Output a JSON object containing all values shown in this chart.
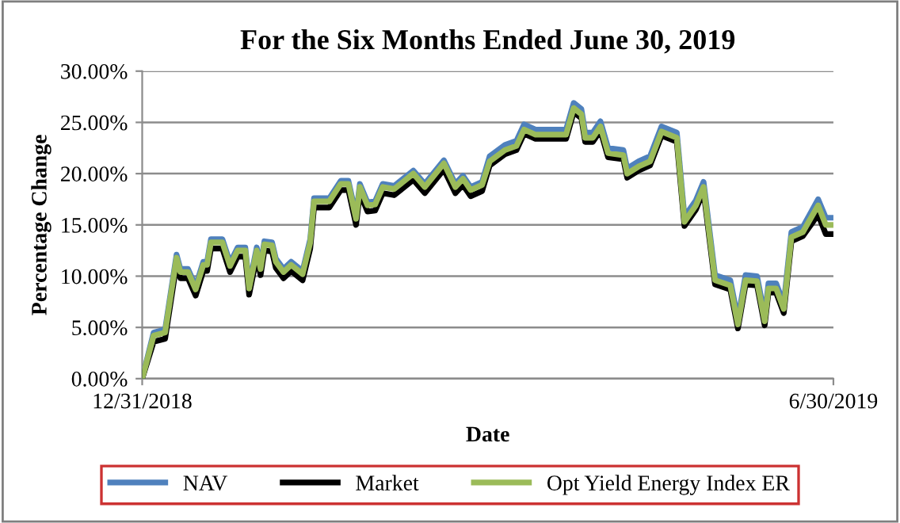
{
  "chart_data": {
    "type": "line",
    "title": "For the Six Months Ended June 30, 2019",
    "xlabel": "Date",
    "ylabel": "Percentage Change",
    "x": [
      "2018-12-31",
      "2019-01-03",
      "2019-01-06",
      "2019-01-09",
      "2019-01-10",
      "2019-01-12",
      "2019-01-14",
      "2019-01-16",
      "2019-01-17",
      "2019-01-18",
      "2019-01-21",
      "2019-01-23",
      "2019-01-25",
      "2019-01-27",
      "2019-01-28",
      "2019-01-30",
      "2019-01-31",
      "2019-02-01",
      "2019-02-03",
      "2019-02-04",
      "2019-02-06",
      "2019-02-08",
      "2019-02-11",
      "2019-02-13",
      "2019-02-14",
      "2019-02-18",
      "2019-02-21",
      "2019-02-23",
      "2019-02-25",
      "2019-02-26",
      "2019-02-28",
      "2019-03-02",
      "2019-03-04",
      "2019-03-07",
      "2019-03-12",
      "2019-03-15",
      "2019-03-20",
      "2019-03-23",
      "2019-03-25",
      "2019-03-27",
      "2019-03-30",
      "2019-04-01",
      "2019-04-05",
      "2019-04-08",
      "2019-04-10",
      "2019-04-13",
      "2019-04-17",
      "2019-04-21",
      "2019-04-23",
      "2019-04-25",
      "2019-04-26",
      "2019-04-28",
      "2019-04-30",
      "2019-05-02",
      "2019-05-06",
      "2019-05-07",
      "2019-05-10",
      "2019-05-13",
      "2019-05-16",
      "2019-05-20",
      "2019-05-22",
      "2019-05-25",
      "2019-05-27",
      "2019-05-30",
      "2019-06-03",
      "2019-06-05",
      "2019-06-07",
      "2019-06-10",
      "2019-06-12",
      "2019-06-13",
      "2019-06-15",
      "2019-06-17",
      "2019-06-19",
      "2019-06-22",
      "2019-06-26",
      "2019-06-28",
      "2019-06-30"
    ],
    "series": [
      {
        "name": "NAV",
        "color": "#4f81bd",
        "values": [
          0,
          4.5,
          4.8,
          12.1,
          10.7,
          10.7,
          9.0,
          11.4,
          11.4,
          13.6,
          13.6,
          11.3,
          12.8,
          12.8,
          9.1,
          12.8,
          11.0,
          13.4,
          13.3,
          11.7,
          10.7,
          11.4,
          10.5,
          13.6,
          17.6,
          17.6,
          19.3,
          19.3,
          15.9,
          19.0,
          17.2,
          17.3,
          19.0,
          18.8,
          20.3,
          19.0,
          21.3,
          19.0,
          19.8,
          18.7,
          19.2,
          21.7,
          22.8,
          23.2,
          24.8,
          24.3,
          24.3,
          24.3,
          26.9,
          26.3,
          24.0,
          24.0,
          25.1,
          22.5,
          22.3,
          20.5,
          21.2,
          21.7,
          24.6,
          24.0,
          15.8,
          17.4,
          19.2,
          10.1,
          9.6,
          5.8,
          10.1,
          10.0,
          6.1,
          9.3,
          9.3,
          7.3,
          14.3,
          14.8,
          17.5,
          15.7,
          15.7
        ]
      },
      {
        "name": "Market",
        "color": "#000000",
        "values": [
          0,
          3.6,
          3.9,
          11.2,
          9.8,
          9.8,
          8.1,
          10.5,
          10.5,
          12.7,
          12.7,
          10.4,
          11.9,
          11.9,
          8.2,
          11.9,
          10.1,
          12.5,
          12.4,
          10.8,
          9.8,
          10.5,
          9.6,
          12.7,
          16.7,
          16.7,
          18.4,
          18.4,
          15.0,
          18.1,
          16.3,
          16.4,
          18.1,
          17.9,
          19.4,
          18.1,
          20.4,
          18.1,
          18.9,
          17.8,
          18.3,
          20.8,
          21.9,
          22.3,
          23.9,
          23.4,
          23.4,
          23.4,
          26.0,
          25.4,
          23.1,
          23.1,
          24.2,
          21.6,
          21.4,
          19.6,
          20.3,
          20.8,
          23.7,
          23.1,
          14.9,
          16.5,
          18.3,
          9.2,
          8.7,
          4.9,
          9.2,
          9.1,
          5.2,
          8.4,
          8.4,
          6.4,
          13.4,
          13.9,
          16.0,
          14.1,
          14.1
        ]
      },
      {
        "name": "Opt Yield Energy Index ER",
        "color": "#9bbb59",
        "values": [
          0,
          4.2,
          4.5,
          11.8,
          10.4,
          10.4,
          8.7,
          11.1,
          11.1,
          13.3,
          13.3,
          11.0,
          12.5,
          12.5,
          8.8,
          12.5,
          10.7,
          13.1,
          13.0,
          11.4,
          10.4,
          11.1,
          10.2,
          13.3,
          17.3,
          17.3,
          19.0,
          19.0,
          15.6,
          18.7,
          16.9,
          17.0,
          18.7,
          18.5,
          20.0,
          18.7,
          21.0,
          18.7,
          19.5,
          18.4,
          18.9,
          21.2,
          22.3,
          22.7,
          24.3,
          23.8,
          23.8,
          23.8,
          26.4,
          25.8,
          23.5,
          23.5,
          24.6,
          22.0,
          21.8,
          20.0,
          20.7,
          21.2,
          24.1,
          23.5,
          15.3,
          16.9,
          18.7,
          9.6,
          9.1,
          5.3,
          9.6,
          9.5,
          5.6,
          8.8,
          8.8,
          6.8,
          13.8,
          14.3,
          16.9,
          15.0,
          15.0
        ]
      }
    ],
    "xlim": [
      "2018-12-31",
      "2019-06-30"
    ],
    "xticks": [
      {
        "value": "2018-12-31",
        "label": "12/31/2018"
      },
      {
        "value": "2019-06-30",
        "label": "6/30/2019"
      }
    ],
    "ylim": [
      0,
      30
    ],
    "yticks": [
      {
        "value": 0,
        "label": "0.00%"
      },
      {
        "value": 5,
        "label": "5.00%"
      },
      {
        "value": 10,
        "label": "10.00%"
      },
      {
        "value": 15,
        "label": "15.00%"
      },
      {
        "value": 20,
        "label": "20.00%"
      },
      {
        "value": 25,
        "label": "25.00%"
      },
      {
        "value": 30,
        "label": "30.00%"
      }
    ],
    "grid": "y",
    "legend": "bottom",
    "marker": "none",
    "line_style": "solid"
  }
}
